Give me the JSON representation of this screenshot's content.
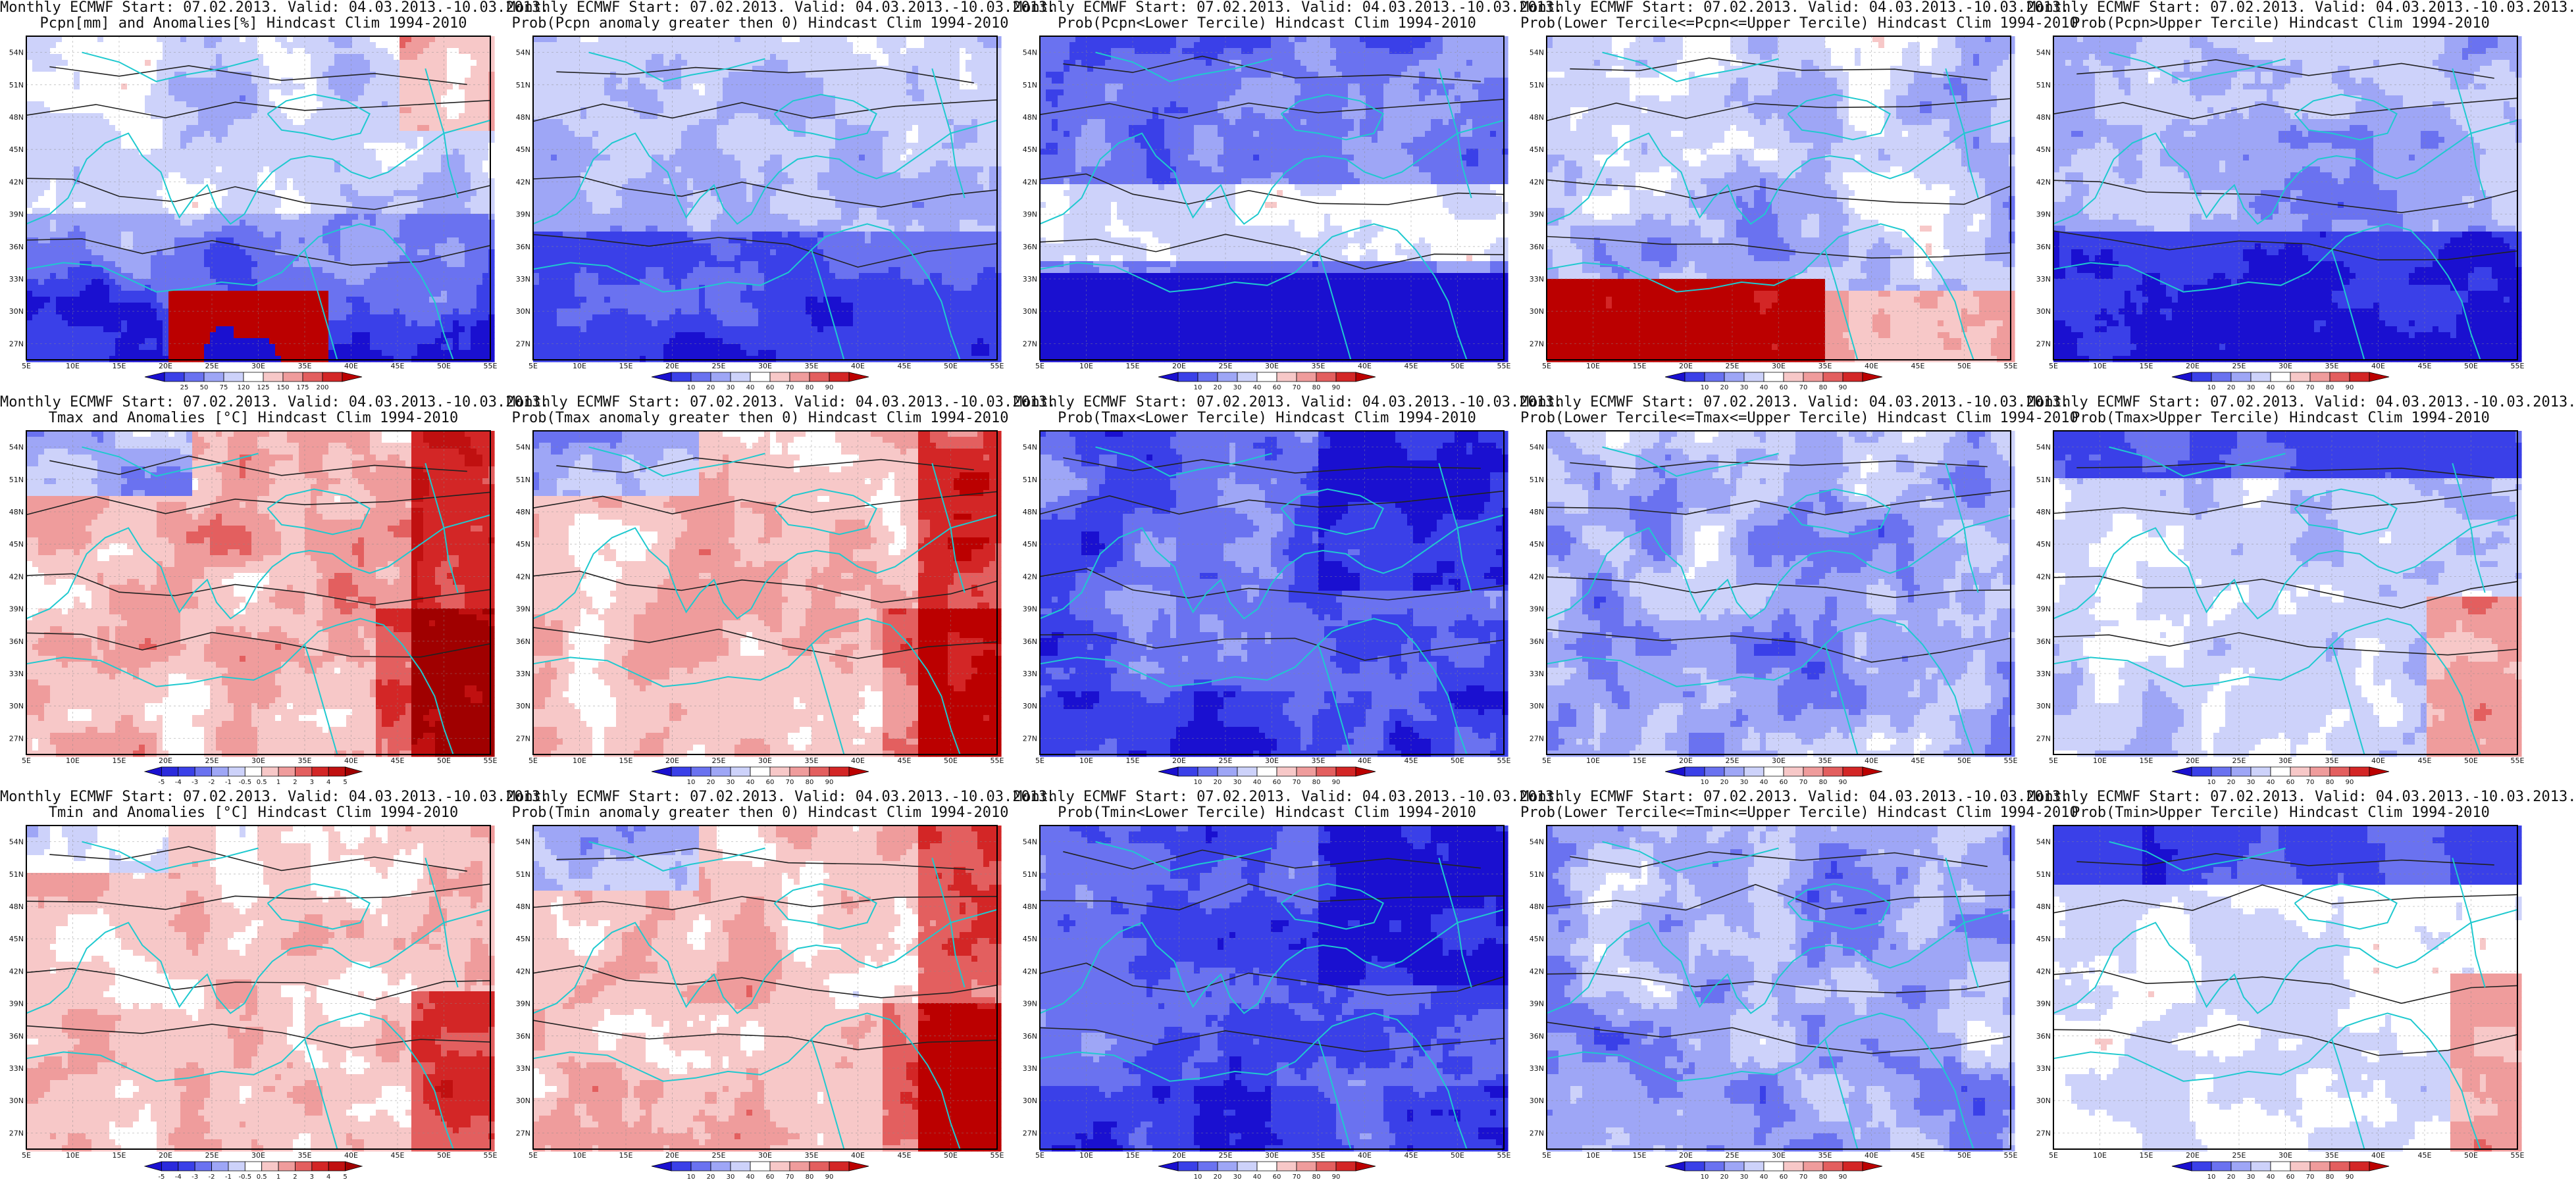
{
  "lon_labels": [
    "5E",
    "10E",
    "15E",
    "20E",
    "25E",
    "30E",
    "35E",
    "40E",
    "45E",
    "50E",
    "55E"
  ],
  "lat_labels": [
    "54N",
    "51N",
    "48N",
    "45N",
    "42N",
    "39N",
    "36N",
    "33N",
    "30N",
    "27N"
  ],
  "prob_colorbar": {
    "ticks": [
      "10",
      "20",
      "30",
      "40",
      "60",
      "70",
      "80",
      "90"
    ],
    "colors": [
      "#1a10d0",
      "#3a40e8",
      "#6a72f0",
      "#9ea6f6",
      "#cdd2fa",
      "#ffffff",
      "#f7c8c8",
      "#ef9c9c",
      "#e35f5f",
      "#d32626",
      "#bb0000"
    ]
  },
  "precip_colorbar": {
    "ticks": [
      "25",
      "50",
      "75",
      "120",
      "125",
      "150",
      "175",
      "200"
    ],
    "colors": [
      "#1a10d0",
      "#3a40e8",
      "#6a72f0",
      "#9ea6f6",
      "#cdd2fa",
      "#ffffff",
      "#f7c8c8",
      "#ef9c9c",
      "#e35f5f",
      "#d32626",
      "#bb0000"
    ]
  },
  "anom_colorbar": {
    "ticks": [
      "-5",
      "-4",
      "-3",
      "-2",
      "-1",
      "-0.5",
      "0.5",
      "1",
      "2",
      "3",
      "4",
      "5"
    ],
    "colors": [
      "#1a10d0",
      "#2a2adc",
      "#3a40e8",
      "#6a72f0",
      "#9ea6f6",
      "#cdd2fa",
      "#ffffff",
      "#f7c8c8",
      "#ef9c9c",
      "#e35f5f",
      "#d32626",
      "#c01010",
      "#a00000"
    ]
  },
  "colors": {
    "coast": "#1fc9cf",
    "contour": "#222222",
    "frame": "#000000",
    "grid": "#8a8a8a"
  },
  "panels": [
    {
      "title1": "Monthly ECMWF Start: 07.02.2013. Valid: 04.03.2013.-10.03.2013.",
      "title2": "Pcpn[mm] and Anomalies[%] Hindcast Clim 1994-2010",
      "theme": "precip",
      "colorbar": "precip_colorbar"
    },
    {
      "title1": "Monthly ECMWF Start: 07.02.2013. Valid: 04.03.2013.-10.03.2013.",
      "title2": "Prob(Pcpn anomaly greater then 0) Hindcast Clim 1994-2010",
      "theme": "pcpn_gt0",
      "colorbar": "prob_colorbar"
    },
    {
      "title1": "Monthly ECMWF Start: 07.02.2013. Valid: 04.03.2013.-10.03.2013.",
      "title2": "Prob(Pcpn<Lower Tercile) Hindcast Clim 1994-2010",
      "theme": "pcpn_lower",
      "colorbar": "prob_colorbar"
    },
    {
      "title1": "Monthly ECMWF Start: 07.02.2013. Valid: 04.03.2013.-10.03.2013.",
      "title2": "Prob(Lower Tercile<=Pcpn<=Upper Tercile) Hindcast Clim 1994-2010",
      "theme": "pcpn_mid",
      "colorbar": "prob_colorbar"
    },
    {
      "title1": "Monthly ECMWF Start: 07.02.2013. Valid: 04.03.2013.-10.03.2013.",
      "title2": "Prob(Pcpn>Upper Tercile) Hindcast Clim 1994-2010",
      "theme": "pcpn_upper",
      "colorbar": "prob_colorbar"
    },
    {
      "title1": "Monthly ECMWF Start: 07.02.2013. Valid: 04.03.2013.-10.03.2013.",
      "title2": "Tmax and Anomalies [°C] Hindcast Clim 1994-2010",
      "theme": "warm",
      "colorbar": "anom_colorbar"
    },
    {
      "title1": "Monthly ECMWF Start: 07.02.2013. Valid: 04.03.2013.-10.03.2013.",
      "title2": "Prob(Tmax anomaly greater then 0) Hindcast Clim 1994-2010",
      "theme": "warm",
      "colorbar": "prob_colorbar"
    },
    {
      "title1": "Monthly ECMWF Start: 07.02.2013. Valid: 04.03.2013.-10.03.2013.",
      "title2": "Prob(Tmax<Lower Tercile) Hindcast Clim 1994-2010",
      "theme": "cold",
      "colorbar": "prob_colorbar"
    },
    {
      "title1": "Monthly ECMWF Start: 07.02.2013. Valid: 04.03.2013.-10.03.2013.",
      "title2": "Prob(Lower Tercile<=Tmax<=Upper Tercile) Hindcast Clim 1994-2010",
      "theme": "mixed",
      "colorbar": "prob_colorbar"
    },
    {
      "title1": "Monthly ECMWF Start: 07.02.2013. Valid: 04.03.2013.-10.03.2013.",
      "title2": "Prob(Tmax>Upper Tercile) Hindcast Clim 1994-2010",
      "theme": "tmax_upper",
      "colorbar": "prob_colorbar"
    },
    {
      "title1": "Monthly ECMWF Start: 07.02.2013. Valid: 04.03.2013.-10.03.2013.",
      "title2": "Tmin and Anomalies [°C] Hindcast Clim 1994-2010",
      "theme": "warm_light",
      "colorbar": "anom_colorbar"
    },
    {
      "title1": "Monthly ECMWF Start: 07.02.2013. Valid: 04.03.2013.-10.03.2013.",
      "title2": "Prob(Tmin anomaly greater then 0) Hindcast Clim 1994-2010",
      "theme": "warm",
      "colorbar": "prob_colorbar"
    },
    {
      "title1": "Monthly ECMWF Start: 07.02.2013. Valid: 04.03.2013.-10.03.2013.",
      "title2": "Prob(Tmin<Lower Tercile) Hindcast Clim 1994-2010",
      "theme": "cold",
      "colorbar": "prob_colorbar"
    },
    {
      "title1": "Monthly ECMWF Start: 07.02.2013. Valid: 04.03.2013.-10.03.2013.",
      "title2": "Prob(Lower Tercile<=Tmin<=Upper Tercile) Hindcast Clim 1994-2010",
      "theme": "mixed",
      "colorbar": "prob_colorbar"
    },
    {
      "title1": "Monthly ECMWF Start: 07.02.2013. Valid: 04.03.2013.-10.03.2013.",
      "title2": "Prob(Tmin>Upper Tercile) Hindcast Clim 1994-2010",
      "theme": "tmin_upper",
      "colorbar": "prob_colorbar"
    }
  ]
}
